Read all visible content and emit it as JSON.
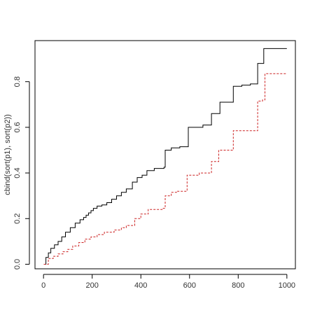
{
  "chart_data": {
    "type": "line",
    "title": "",
    "xlabel": "",
    "ylabel": "cbind(sort(p1), sort(p2))",
    "xlim": [
      -35,
      1035
    ],
    "ylim": [
      -0.02,
      0.98
    ],
    "x_ticks": [
      0,
      200,
      400,
      600,
      800,
      1000
    ],
    "y_ticks": [
      0.0,
      0.2,
      0.4,
      0.6,
      0.8
    ],
    "x_tick_labels": [
      "0",
      "200",
      "400",
      "600",
      "800",
      "1000"
    ],
    "y_tick_labels": [
      "0.0",
      "0.2",
      "0.4",
      "0.6",
      "0.8"
    ],
    "grid": false,
    "legend": "none",
    "series": [
      {
        "color": "#000000",
        "dash": "solid",
        "x": [
          1,
          10,
          20,
          30,
          45,
          60,
          75,
          90,
          110,
          130,
          150,
          165,
          175,
          185,
          195,
          205,
          220,
          240,
          260,
          280,
          300,
          320,
          340,
          365,
          385,
          405,
          425,
          455,
          495,
          500,
          525,
          560,
          595,
          640,
          655,
          690,
          725,
          780,
          815,
          850,
          880,
          905,
          1000
        ],
        "y": [
          0.0,
          0.03,
          0.05,
          0.07,
          0.085,
          0.1,
          0.12,
          0.14,
          0.16,
          0.18,
          0.195,
          0.205,
          0.215,
          0.225,
          0.235,
          0.245,
          0.255,
          0.26,
          0.27,
          0.285,
          0.3,
          0.315,
          0.33,
          0.36,
          0.38,
          0.39,
          0.41,
          0.42,
          0.425,
          0.5,
          0.51,
          0.515,
          0.6,
          0.6,
          0.61,
          0.66,
          0.71,
          0.78,
          0.785,
          0.79,
          0.88,
          0.945,
          0.945
        ]
      },
      {
        "color": "#cc2222",
        "dash": "dashed",
        "x": [
          1,
          20,
          40,
          60,
          80,
          100,
          120,
          145,
          170,
          195,
          220,
          250,
          290,
          320,
          340,
          375,
          400,
          430,
          490,
          500,
          525,
          550,
          590,
          640,
          690,
          720,
          780,
          870,
          880,
          900,
          910,
          1000
        ],
        "y": [
          0.0,
          0.025,
          0.035,
          0.045,
          0.055,
          0.065,
          0.08,
          0.095,
          0.11,
          0.12,
          0.13,
          0.14,
          0.15,
          0.16,
          0.17,
          0.2,
          0.22,
          0.24,
          0.245,
          0.3,
          0.315,
          0.32,
          0.39,
          0.4,
          0.45,
          0.5,
          0.585,
          0.585,
          0.715,
          0.72,
          0.835,
          0.835
        ]
      }
    ]
  }
}
